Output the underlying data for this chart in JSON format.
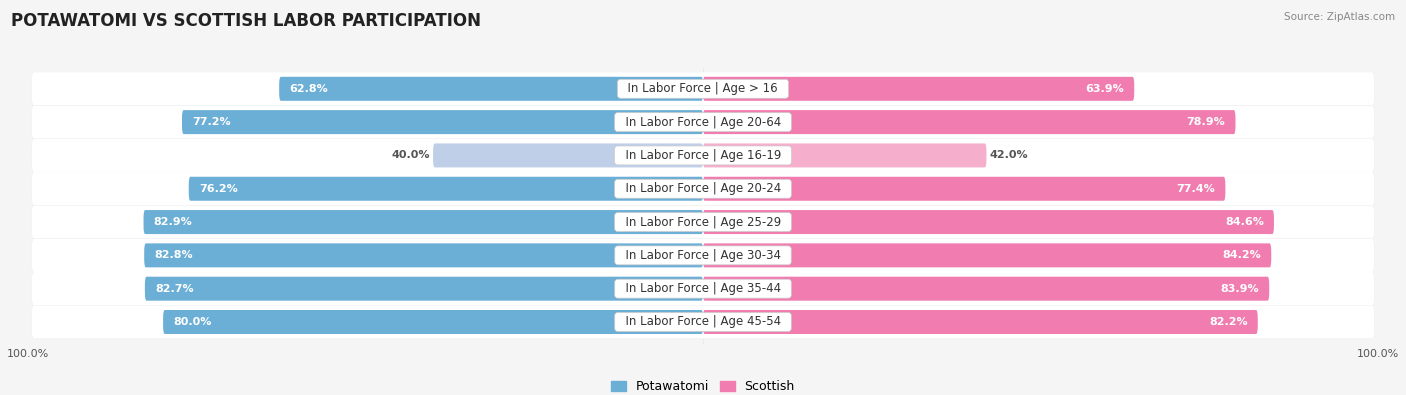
{
  "title": "POTAWATOMI VS SCOTTISH LABOR PARTICIPATION",
  "source": "Source: ZipAtlas.com",
  "categories": [
    "In Labor Force | Age > 16",
    "In Labor Force | Age 20-64",
    "In Labor Force | Age 16-19",
    "In Labor Force | Age 20-24",
    "In Labor Force | Age 25-29",
    "In Labor Force | Age 30-34",
    "In Labor Force | Age 35-44",
    "In Labor Force | Age 45-54"
  ],
  "potawatomi_values": [
    62.8,
    77.2,
    40.0,
    76.2,
    82.9,
    82.8,
    82.7,
    80.0
  ],
  "scottish_values": [
    63.9,
    78.9,
    42.0,
    77.4,
    84.6,
    84.2,
    83.9,
    82.2
  ],
  "potawatomi_color_full": "#6BAED6",
  "potawatomi_color_light": "#BFCFE8",
  "scottish_color_full": "#F07CB0",
  "scottish_color_light": "#F5AECB",
  "row_bg_color": "#e8e8e8",
  "background_color": "#f5f5f5",
  "title_fontsize": 12,
  "label_fontsize": 8.5,
  "value_fontsize": 8.0,
  "legend_fontsize": 9,
  "axis_label_fontsize": 8
}
